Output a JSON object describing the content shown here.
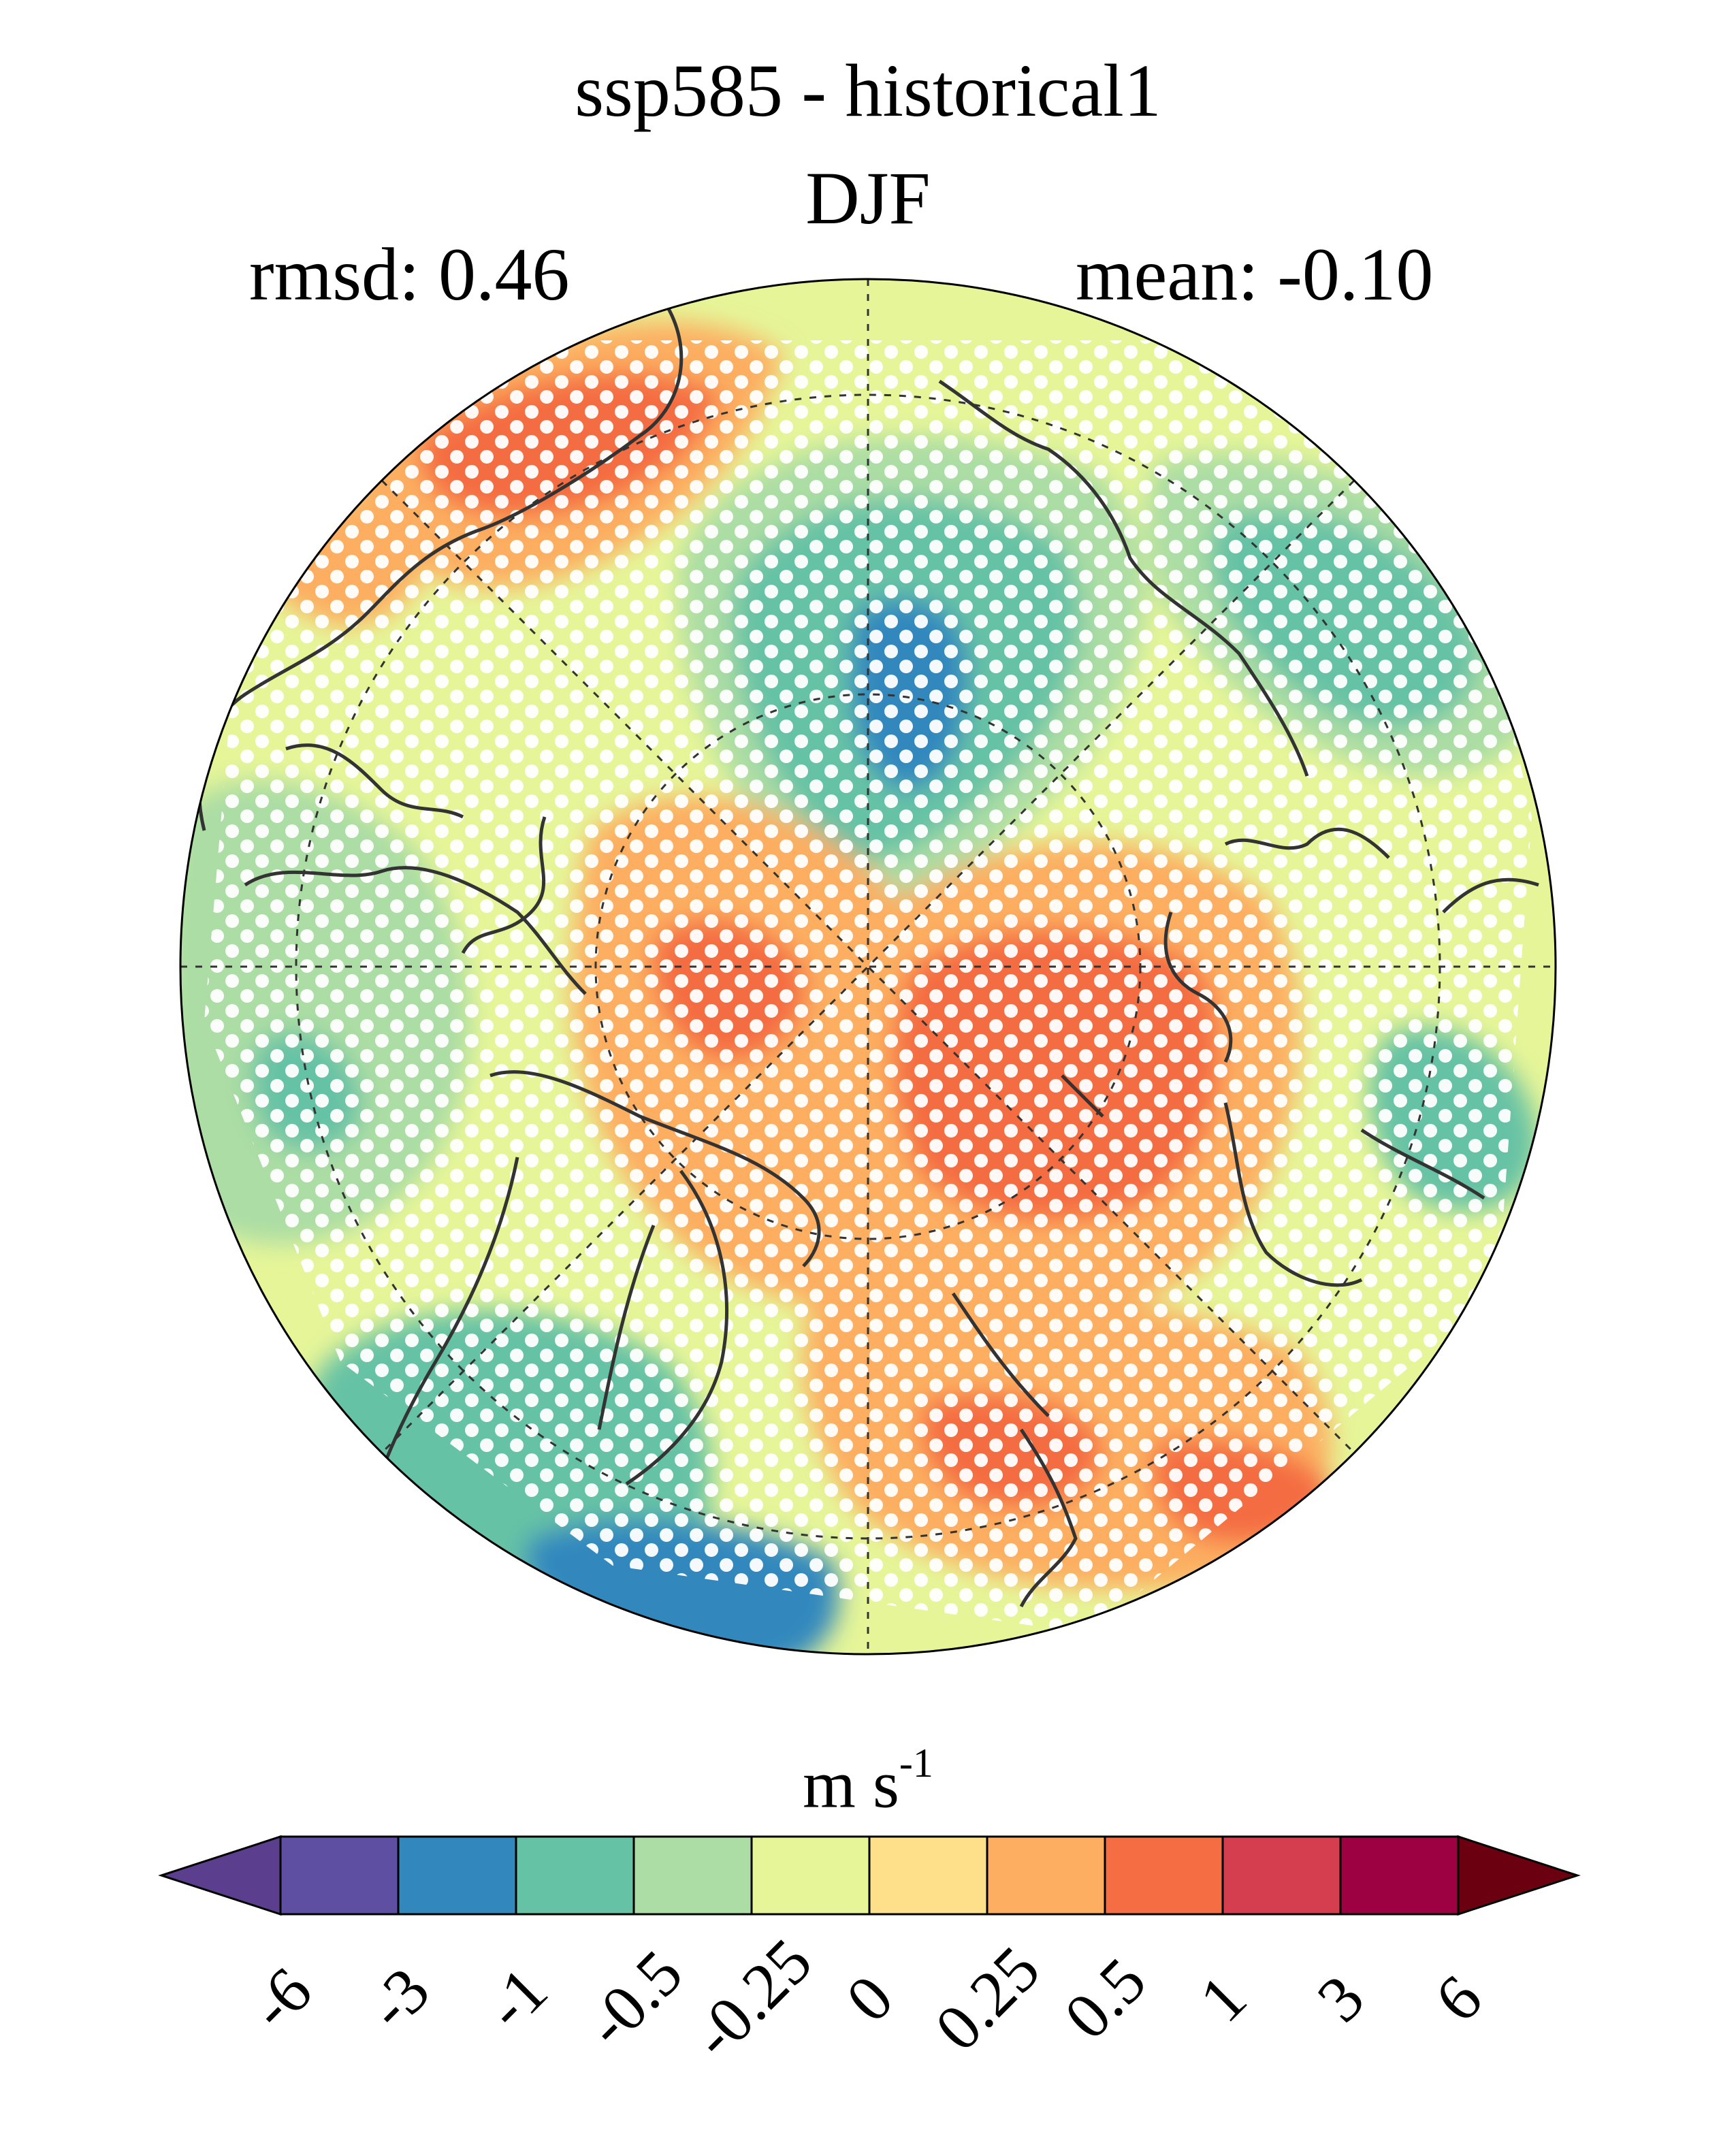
{
  "header": {
    "title": "ssp585 - historical1",
    "season": "DJF",
    "rmsd_label": "rmsd: 0.46",
    "mean_label": "mean: -0.10"
  },
  "map": {
    "projection": "north-polar-stereographic",
    "significance_stippling": true,
    "graticule": "dashed"
  },
  "colorbar": {
    "units_base": "m s",
    "units_exp": "-1",
    "ticks": [
      "-6",
      "-3",
      "-1",
      "-0.5",
      "-0.25",
      "0",
      "0.25",
      "0.5",
      "1",
      "3",
      "6"
    ],
    "colors": [
      "#5e4fa2",
      "#3288bd",
      "#66c2a5",
      "#abdda4",
      "#e6f598",
      "#fee08b",
      "#fdae61",
      "#f46d43",
      "#d53e4f",
      "#9e0142"
    ],
    "under_color": "#5b3f8e",
    "over_color": "#6b0010",
    "extend": "both"
  }
}
